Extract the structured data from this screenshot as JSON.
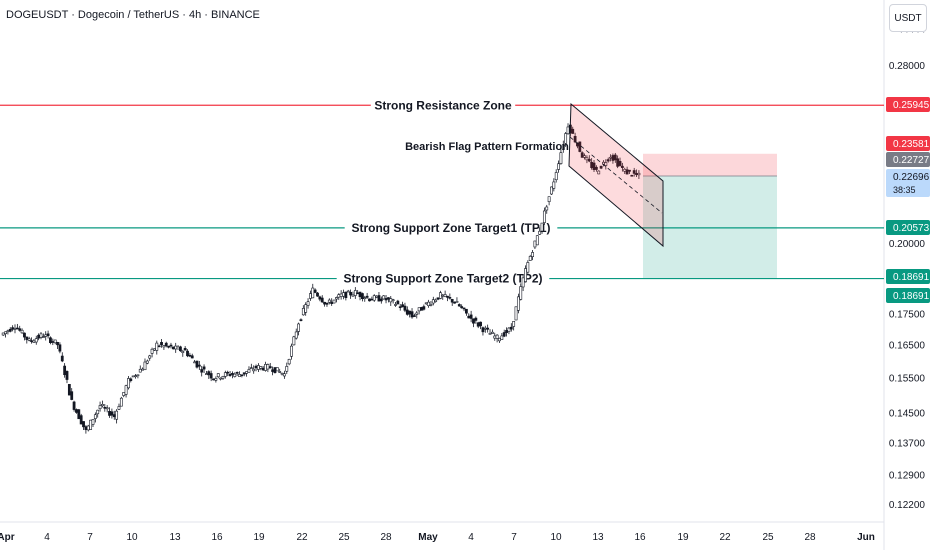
{
  "header": {
    "symbol_line": "DOGEUSDT · Dogecoin / TetherUS · 4h · BINANCE",
    "unit_button": "USDT"
  },
  "chart_data": {
    "type": "candlestick",
    "symbol": "DOGEUSDT",
    "exchange": "BINANCE",
    "timeframe": "4h",
    "y_axis": {
      "min": 0.118,
      "max": 0.3,
      "scale": "log",
      "ticks": [
        "0.28000",
        "0.20000",
        "0.17500",
        "0.16500",
        "0.15500",
        "0.14500",
        "0.13700",
        "0.12900",
        "0.12200"
      ]
    },
    "x_axis": {
      "ticks": [
        "Apr",
        "4",
        "7",
        "10",
        "13",
        "16",
        "19",
        "22",
        "25",
        "28",
        "May",
        "4",
        "7",
        "10",
        "13",
        "16",
        "19",
        "22",
        "25",
        "28",
        "Jun"
      ]
    },
    "levels": [
      {
        "label": "Strong Resistance Zone",
        "value": 0.25945,
        "color": "#f23645"
      },
      {
        "label": "Strong Support Zone Target1 (TP1)",
        "value": 0.20573,
        "color": "#089981"
      },
      {
        "label": "Strong Support Zone Target2 (TP2)",
        "value": 0.18691,
        "color": "#089981"
      }
    ],
    "annotations": [
      {
        "text": "Bearish Flag Pattern Formation"
      }
    ],
    "price_labels": [
      {
        "value": "0.25945",
        "color": "#f23645"
      },
      {
        "value": "0.23581",
        "color": "#f23645"
      },
      {
        "value": "0.22727",
        "color": "#787b86"
      },
      {
        "value": "0.22696",
        "color": "#bbd9fb",
        "countdown": "38:35"
      },
      {
        "value": "0.20573",
        "color": "#089981"
      },
      {
        "value": "0.18691",
        "color": "#089981"
      },
      {
        "value": "0.18691",
        "color": "#089981"
      }
    ],
    "trade_setup": {
      "entry": 0.22696,
      "stop": 0.23581,
      "target": 0.18691
    },
    "price_path": [
      {
        "date": "2025-04-01",
        "close": 0.168
      },
      {
        "date": "2025-04-02",
        "close": 0.171
      },
      {
        "date": "2025-04-03",
        "close": 0.166
      },
      {
        "date": "2025-04-04",
        "close": 0.168
      },
      {
        "date": "2025-04-05",
        "close": 0.165
      },
      {
        "date": "2025-04-06",
        "close": 0.148
      },
      {
        "date": "2025-04-07",
        "close": 0.14
      },
      {
        "date": "2025-04-08",
        "close": 0.147
      },
      {
        "date": "2025-04-09",
        "close": 0.144
      },
      {
        "date": "2025-04-10",
        "close": 0.154
      },
      {
        "date": "2025-04-11",
        "close": 0.158
      },
      {
        "date": "2025-04-12",
        "close": 0.165
      },
      {
        "date": "2025-04-13",
        "close": 0.164
      },
      {
        "date": "2025-04-14",
        "close": 0.163
      },
      {
        "date": "2025-04-15",
        "close": 0.158
      },
      {
        "date": "2025-04-16",
        "close": 0.155
      },
      {
        "date": "2025-04-17",
        "close": 0.156
      },
      {
        "date": "2025-04-18",
        "close": 0.156
      },
      {
        "date": "2025-04-19",
        "close": 0.158
      },
      {
        "date": "2025-04-20",
        "close": 0.158
      },
      {
        "date": "2025-04-21",
        "close": 0.156
      },
      {
        "date": "2025-04-22",
        "close": 0.172
      },
      {
        "date": "2025-04-23",
        "close": 0.183
      },
      {
        "date": "2025-04-24",
        "close": 0.178
      },
      {
        "date": "2025-04-25",
        "close": 0.181
      },
      {
        "date": "2025-04-26",
        "close": 0.182
      },
      {
        "date": "2025-04-27",
        "close": 0.18
      },
      {
        "date": "2025-04-28",
        "close": 0.18
      },
      {
        "date": "2025-04-29",
        "close": 0.178
      },
      {
        "date": "2025-04-30",
        "close": 0.174
      },
      {
        "date": "2025-05-01",
        "close": 0.178
      },
      {
        "date": "2025-05-02",
        "close": 0.181
      },
      {
        "date": "2025-05-03",
        "close": 0.179
      },
      {
        "date": "2025-05-04",
        "close": 0.174
      },
      {
        "date": "2025-05-05",
        "close": 0.17
      },
      {
        "date": "2025-05-06",
        "close": 0.167
      },
      {
        "date": "2025-05-07",
        "close": 0.17
      },
      {
        "date": "2025-05-08",
        "close": 0.19
      },
      {
        "date": "2025-05-09",
        "close": 0.205
      },
      {
        "date": "2025-05-10",
        "close": 0.225
      },
      {
        "date": "2025-05-11",
        "close": 0.25
      },
      {
        "date": "2025-05-12",
        "close": 0.236
      },
      {
        "date": "2025-05-13",
        "close": 0.229
      },
      {
        "date": "2025-05-14",
        "close": 0.236
      },
      {
        "date": "2025-05-15",
        "close": 0.229
      },
      {
        "date": "2025-05-16",
        "close": 0.22696
      }
    ]
  }
}
